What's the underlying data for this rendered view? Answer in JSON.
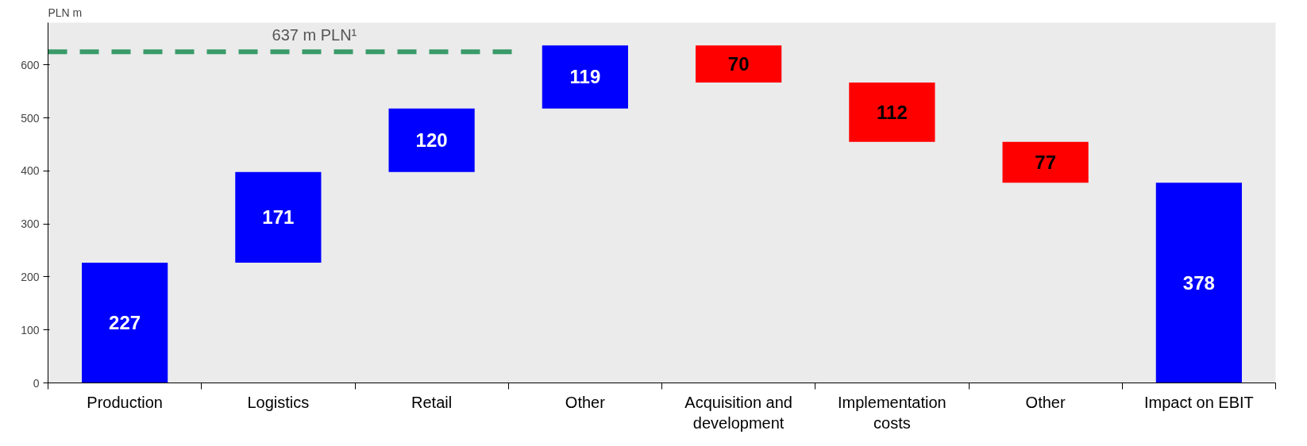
{
  "chart_data": {
    "type": "bar",
    "ylabel": "PLN m",
    "categories": [
      "Production",
      "Logistics",
      "Retail",
      "Other",
      "Acquisition and development",
      "Implementation costs",
      "Other",
      "Impact on EBIT"
    ],
    "values": [
      227,
      171,
      120,
      119,
      70,
      112,
      77,
      378
    ],
    "base": [
      0,
      227,
      398,
      518,
      567,
      455,
      378,
      0
    ],
    "colors": [
      "#0000ff",
      "#0000ff",
      "#0000ff",
      "#0000ff",
      "#ff0000",
      "#ff0000",
      "#ff0000",
      "#0000ff"
    ],
    "data_labels": true,
    "ylim": [
      0,
      680
    ],
    "yticks": [
      0,
      100,
      200,
      300,
      400,
      500,
      600
    ],
    "ref_lines": [
      {
        "axis": "y",
        "value": 625,
        "label": "637 m  PLN¹",
        "color": "#3a9a6a",
        "line_style": "dashed"
      }
    ],
    "grid": false
  }
}
